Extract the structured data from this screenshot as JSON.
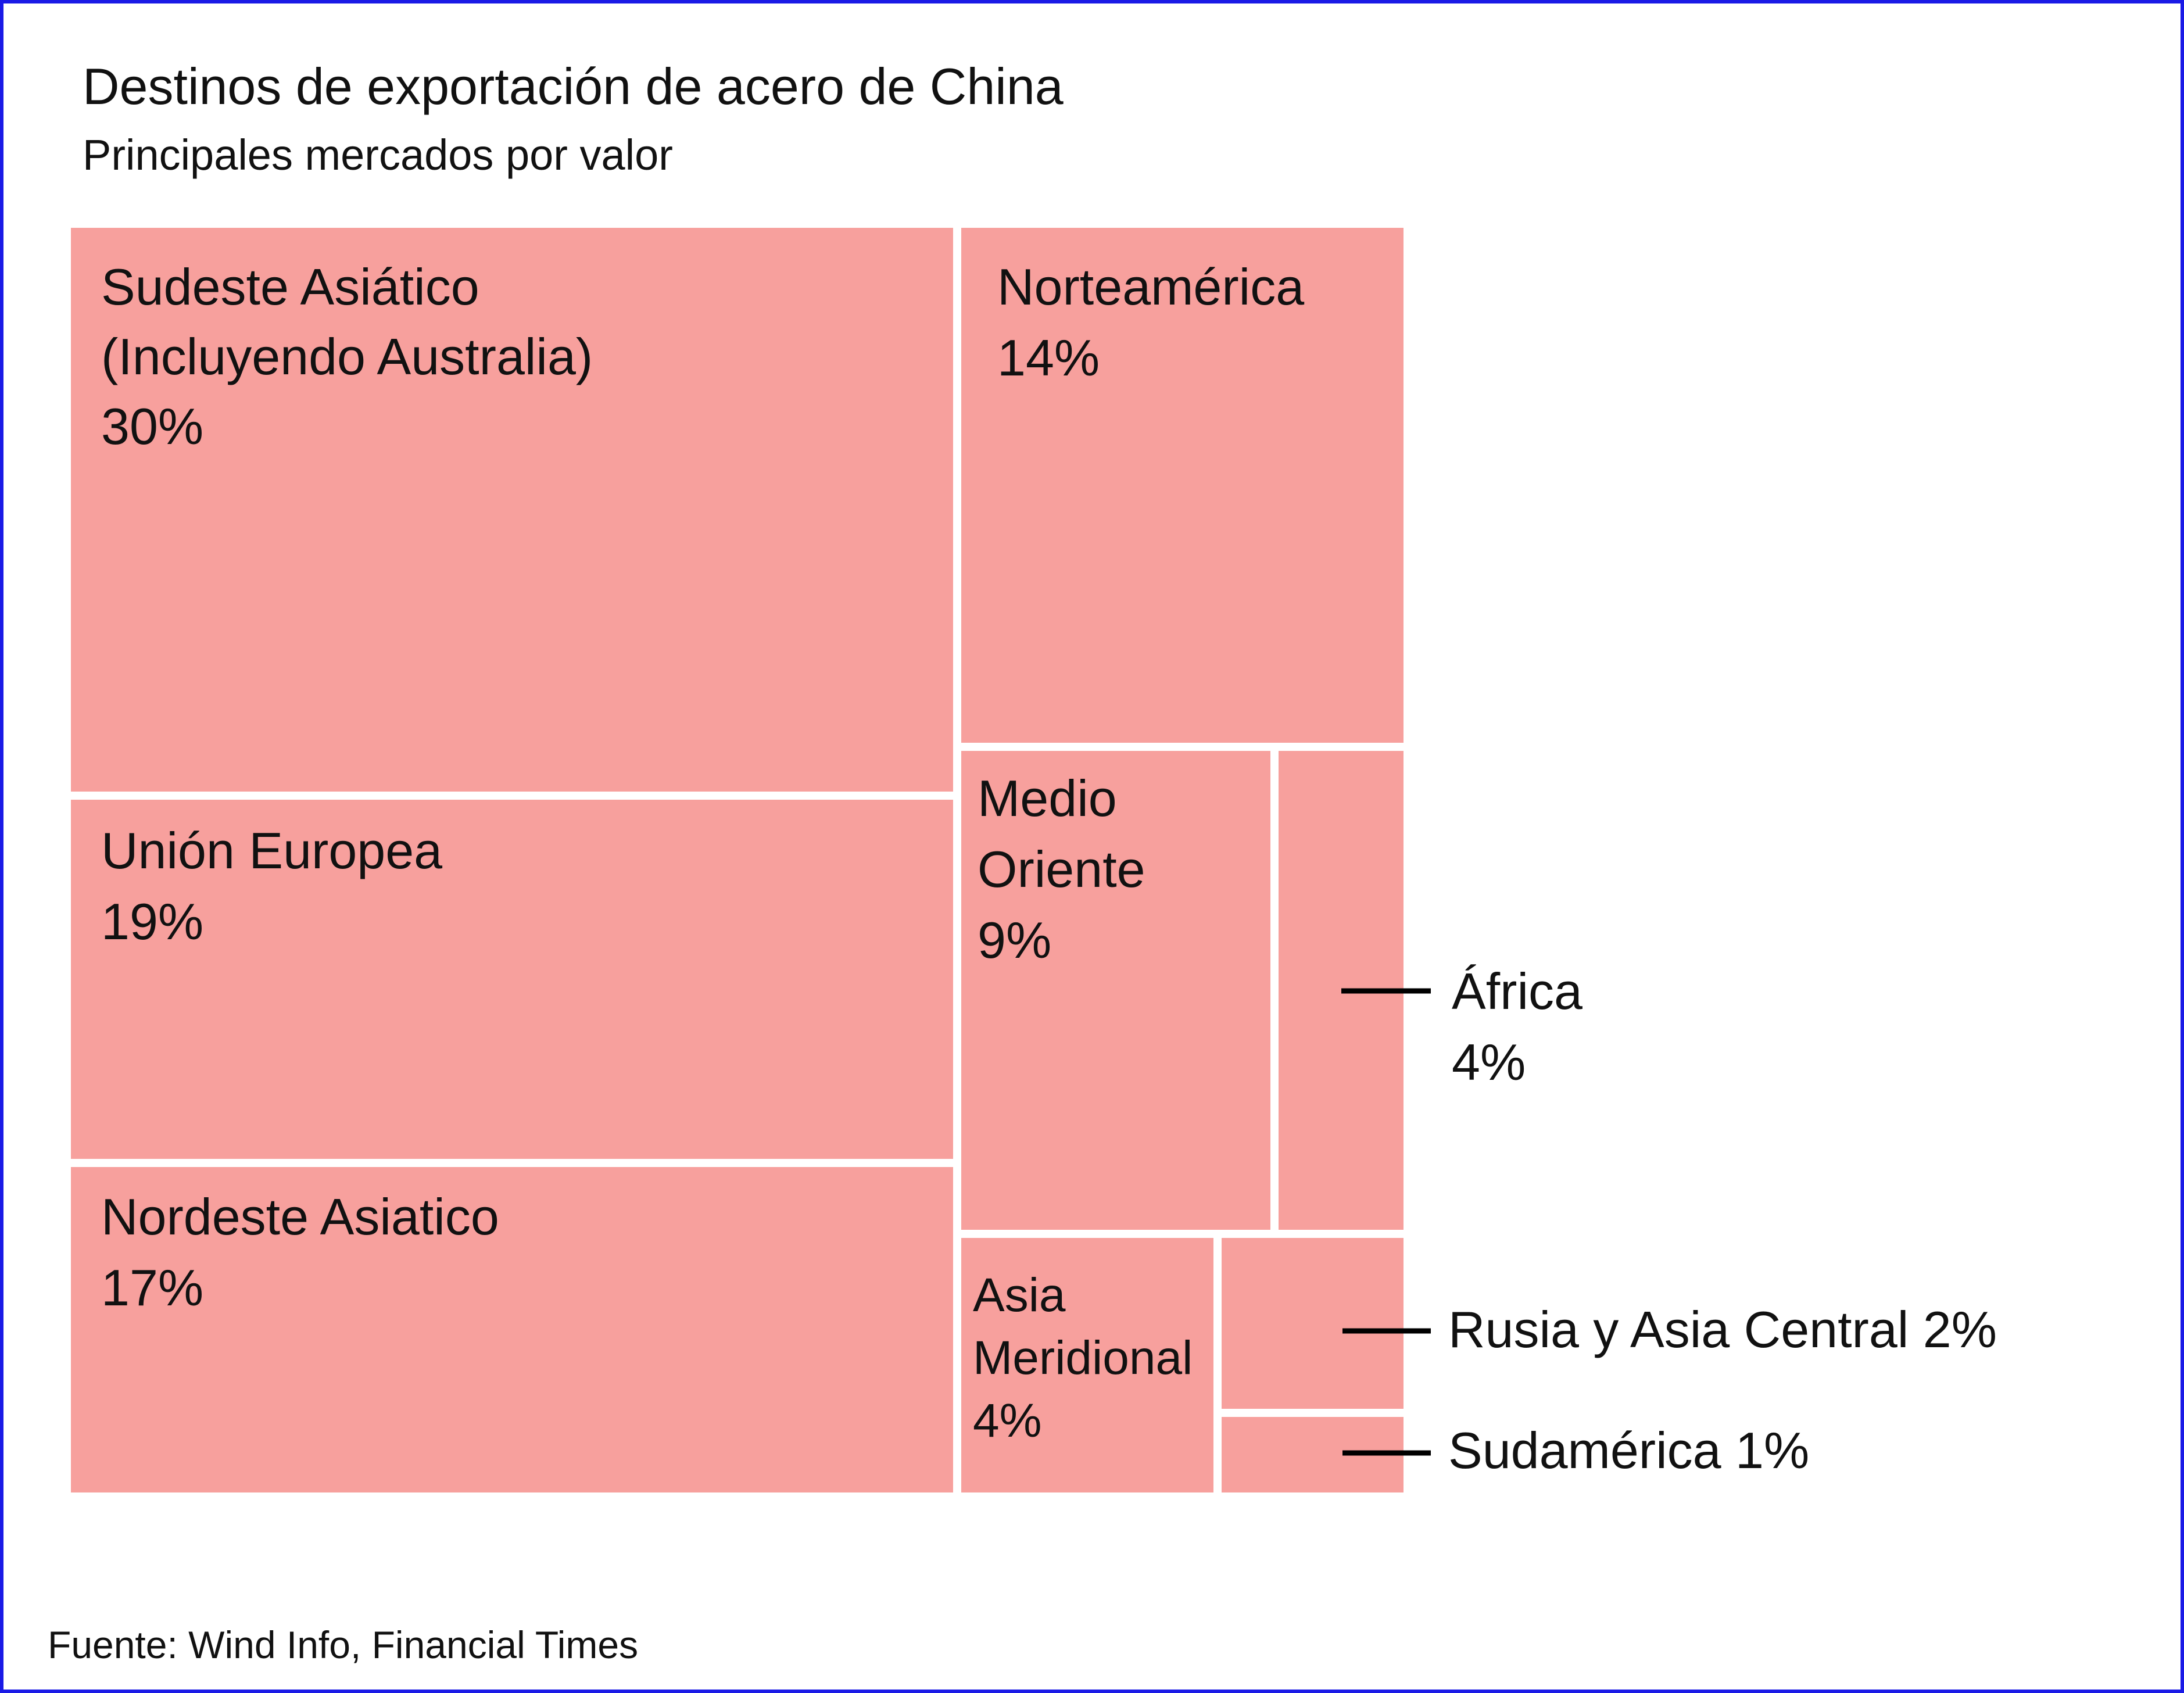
{
  "title": "Destinos de exportación de acero de China",
  "subtitle": "Principales mercados por valor",
  "source": "Fuente: Wind Info, Financial Times",
  "colors": {
    "cell": "#f7a09d",
    "border": "#1a1ae6",
    "text": "#111111",
    "leader": "#000000"
  },
  "chart_data": {
    "type": "treemap",
    "unit": "%",
    "title": "Destinos de exportación de acero de China",
    "subtitle": "Principales mercados por valor",
    "items": [
      {
        "name": "Sudeste Asiático (Incluyendo Australia)",
        "label_lines": [
          "Sudeste Asiático",
          "(Incluyendo Australia)"
        ],
        "value_label": "30%",
        "value": 30
      },
      {
        "name": "Unión Europea",
        "label_lines": [
          "Unión Europea"
        ],
        "value_label": "19%",
        "value": 19
      },
      {
        "name": "Nordeste Asiatico",
        "label_lines": [
          "Nordeste Asiatico"
        ],
        "value_label": "17%",
        "value": 17
      },
      {
        "name": "Norteamérica",
        "label_lines": [
          "Norteamérica"
        ],
        "value_label": "14%",
        "value": 14
      },
      {
        "name": "Medio Oriente",
        "label_lines": [
          "Medio",
          "Oriente"
        ],
        "value_label": "9%",
        "value": 9
      },
      {
        "name": "África",
        "label_lines": [
          "África"
        ],
        "value_label": "4%",
        "value": 4
      },
      {
        "name": "Asia Meridional",
        "label_lines": [
          "Asia",
          "Meridional"
        ],
        "value_label": "4%",
        "value": 4
      },
      {
        "name": "Rusia y Asia Central",
        "label_lines": [
          "Rusia y Asia Central 2%"
        ],
        "value_label": "",
        "value": 2
      },
      {
        "name": "Sudamérica",
        "label_lines": [
          "Sudamérica 1%"
        ],
        "value_label": "",
        "value": 1
      }
    ]
  }
}
